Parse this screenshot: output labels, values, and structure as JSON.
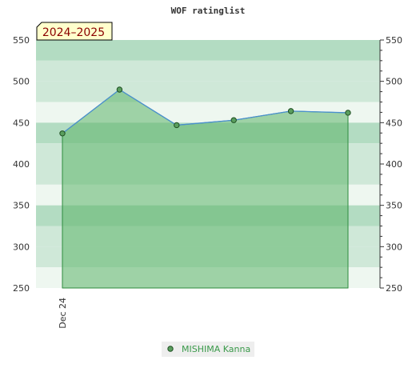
{
  "chart_data": {
    "type": "area",
    "title": "WOF ratinglist",
    "season": "2024–2025",
    "xlabel": "",
    "ylabel": "",
    "ylim": [
      250,
      550
    ],
    "y_ticks": [
      250,
      300,
      350,
      400,
      450,
      500,
      550
    ],
    "x_tick_labels": [
      "Dec 24"
    ],
    "series": [
      {
        "name": "MISHIMA Kanna",
        "values": [
          437,
          490,
          447,
          453,
          464,
          462
        ]
      }
    ],
    "grid": true,
    "legend": "bottom-center",
    "colors": {
      "area_fill": "#5cb56a",
      "line": "#4a8fd0",
      "marker_fill": "#5a9e5e",
      "band_dark": "#b3dcc2",
      "band_mid": "#cfe8d8",
      "band_light": "#eef7f0",
      "season_badge_bg": "#ffffcc",
      "legend_text": "#3a9a4a"
    }
  }
}
